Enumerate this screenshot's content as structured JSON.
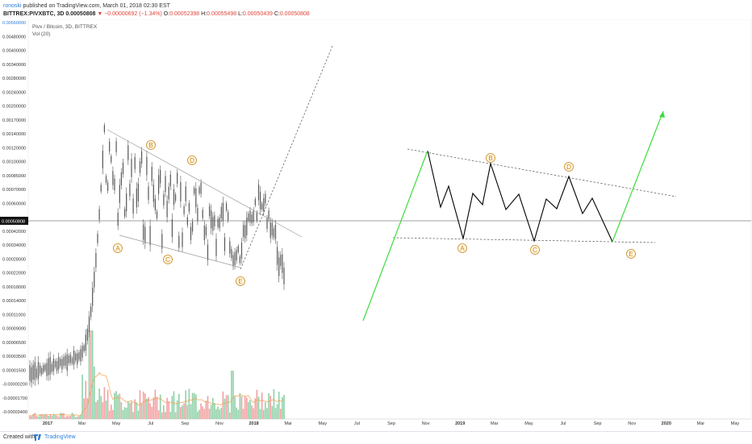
{
  "header": {
    "user": "ronoski",
    "published_text": "published on TradingView.com, March 01, 2018 02:30 EST",
    "symbol": "BITTREX:PIVXBTC, 3D",
    "last_price": "0.00050808",
    "change": "▼ −0.00000692 (−1.34%)",
    "o_label": "O:",
    "o_value": "0.00052398",
    "h_label": "H:",
    "h_value": "0.00055498",
    "l_label": "L:",
    "l_value": "0.00050439",
    "c_label": "C:",
    "c_value": "0.00050808"
  },
  "chart_overlay": {
    "title": "Pivx / Bitcoin, 3D, BITTREX",
    "volume_label": "Vol (20)"
  },
  "price_axis": {
    "labels": [
      "0.00560000",
      "0.00480000",
      "0.00400000",
      "0.00340000",
      "0.00280000",
      "0.00240000",
      "0.00200000",
      "0.00170000",
      "0.00140000",
      "0.00120000",
      "0.00100000",
      "0.00085000",
      "0.00070000",
      "0.00060000",
      "0.00050808",
      "0.00042000",
      "0.00034000",
      "0.00028000",
      "0.00022000",
      "0.00018000",
      "0.00014000",
      "0.00011000",
      "0.00009000",
      "0.00006500",
      "0.00003500",
      "0.00001500",
      "-0.00000200",
      "-0.00001700",
      "-0.00003400"
    ],
    "current_price_label": "0.00050808"
  },
  "time_axis": {
    "labels": [
      "2017",
      "Mar",
      "May",
      "Jul",
      "Sep",
      "Nov",
      "2018",
      "Mar",
      "May",
      "Jul",
      "Sep",
      "Nov",
      "2019",
      "Mar",
      "May",
      "Jul",
      "Sep",
      "Nov",
      "2020",
      "Mar",
      "May"
    ]
  },
  "annotations": {
    "left_triangle": [
      "A",
      "B",
      "C",
      "D",
      "E"
    ],
    "right_projection_bottom": [
      "A",
      "C",
      "E"
    ],
    "right_projection_top": [
      "B",
      "D"
    ]
  },
  "footer": {
    "created_with": "Created with",
    "brand": "TradingView"
  },
  "colors": {
    "candle": "#555555",
    "projection_line": "#000000",
    "impulse_arrow": "#3ddc3d",
    "wave_label": "#c8881a",
    "volume_up": "#8fd1a8",
    "volume_down": "#f2a0a0",
    "volume_ma": "#f0a050",
    "brand_blue": "#2b7fd8"
  }
}
